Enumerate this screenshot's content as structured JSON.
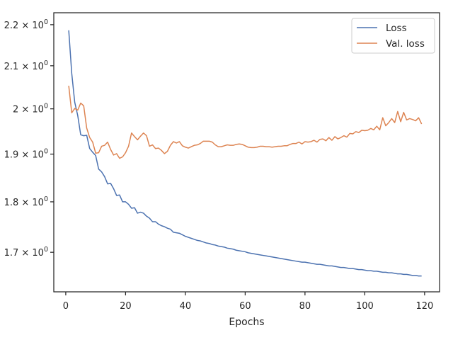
{
  "chart_data": {
    "type": "line",
    "xlabel": "Epochs",
    "ylabel": "",
    "xlim": [
      -4,
      125
    ],
    "ylim": [
      1.6255,
      2.23
    ],
    "yscale": "log",
    "grid": false,
    "legend_placement": "top-right",
    "x_ticks": [
      0,
      20,
      40,
      60,
      80,
      100,
      120
    ],
    "x_tick_labels": [
      "0",
      "20",
      "40",
      "60",
      "80",
      "100",
      "120"
    ],
    "y_ticks": [
      {
        "value": 1.7,
        "mant": "1.7",
        "exp": "0"
      },
      {
        "value": 1.8,
        "mant": "1.8",
        "exp": "0"
      },
      {
        "value": 1.9,
        "mant": "1.9",
        "exp": "0"
      },
      {
        "value": 2.0,
        "mant": "2",
        "exp": "0"
      },
      {
        "value": 2.1,
        "mant": "2.1",
        "exp": "0"
      },
      {
        "value": 2.2,
        "mant": "2.2",
        "exp": "0"
      }
    ],
    "y_tick_base": "10",
    "y_tick_times": "×",
    "series": [
      {
        "name": "Loss",
        "color": "#4c72b0",
        "x": [
          1,
          2,
          3,
          4,
          5,
          6,
          7,
          8,
          9,
          10,
          11,
          12,
          13,
          14,
          15,
          16,
          17,
          18,
          19,
          20,
          21,
          22,
          23,
          24,
          25,
          26,
          27,
          28,
          29,
          30,
          31,
          32,
          33,
          34,
          35,
          36,
          37,
          38,
          39,
          40,
          41,
          42,
          43,
          44,
          45,
          46,
          47,
          48,
          49,
          50,
          51,
          52,
          53,
          54,
          55,
          56,
          57,
          58,
          59,
          60,
          61,
          62,
          63,
          64,
          65,
          66,
          67,
          68,
          69,
          70,
          71,
          72,
          73,
          74,
          75,
          76,
          77,
          78,
          79,
          80,
          81,
          82,
          83,
          84,
          85,
          86,
          87,
          88,
          89,
          90,
          91,
          92,
          93,
          94,
          95,
          96,
          97,
          98,
          99,
          100,
          101,
          102,
          103,
          104,
          105,
          106,
          107,
          108,
          109,
          110,
          111,
          112,
          113,
          114,
          115,
          116,
          117,
          118,
          119
        ],
        "y": [
          2.186,
          2.082,
          2.015,
          1.985,
          1.942,
          1.94,
          1.941,
          1.912,
          1.904,
          1.897,
          1.868,
          1.862,
          1.852,
          1.837,
          1.838,
          1.827,
          1.813,
          1.814,
          1.8,
          1.8,
          1.795,
          1.787,
          1.788,
          1.777,
          1.779,
          1.777,
          1.771,
          1.767,
          1.76,
          1.76,
          1.755,
          1.752,
          1.75,
          1.747,
          1.745,
          1.739,
          1.738,
          1.737,
          1.734,
          1.731,
          1.729,
          1.727,
          1.725,
          1.723,
          1.722,
          1.72,
          1.718,
          1.717,
          1.715,
          1.714,
          1.712,
          1.711,
          1.71,
          1.708,
          1.707,
          1.706,
          1.704,
          1.703,
          1.702,
          1.701,
          1.699,
          1.698,
          1.697,
          1.696,
          1.695,
          1.694,
          1.693,
          1.692,
          1.691,
          1.69,
          1.689,
          1.688,
          1.687,
          1.686,
          1.685,
          1.684,
          1.683,
          1.682,
          1.681,
          1.681,
          1.68,
          1.679,
          1.678,
          1.677,
          1.677,
          1.676,
          1.675,
          1.674,
          1.674,
          1.673,
          1.672,
          1.671,
          1.671,
          1.67,
          1.669,
          1.669,
          1.668,
          1.667,
          1.667,
          1.666,
          1.665,
          1.665,
          1.664,
          1.664,
          1.663,
          1.662,
          1.662,
          1.661,
          1.661,
          1.66,
          1.659,
          1.659,
          1.658,
          1.658,
          1.657,
          1.656,
          1.656,
          1.655,
          1.655
        ]
      },
      {
        "name": "Val. loss",
        "color": "#dd8452",
        "x": [
          1,
          2,
          3,
          4,
          5,
          6,
          7,
          8,
          9,
          10,
          11,
          12,
          13,
          14,
          15,
          16,
          17,
          18,
          19,
          20,
          21,
          22,
          23,
          24,
          25,
          26,
          27,
          28,
          29,
          30,
          31,
          32,
          33,
          34,
          35,
          36,
          37,
          38,
          39,
          40,
          41,
          42,
          43,
          44,
          45,
          46,
          47,
          48,
          49,
          50,
          51,
          52,
          53,
          54,
          55,
          56,
          57,
          58,
          59,
          60,
          61,
          62,
          63,
          64,
          65,
          66,
          67,
          68,
          69,
          70,
          71,
          72,
          73,
          74,
          75,
          76,
          77,
          78,
          79,
          80,
          81,
          82,
          83,
          84,
          85,
          86,
          87,
          88,
          89,
          90,
          91,
          92,
          93,
          94,
          95,
          96,
          97,
          98,
          99,
          100,
          101,
          102,
          103,
          104,
          105,
          106,
          107,
          108,
          109,
          110,
          111,
          112,
          113,
          114,
          115,
          116,
          117,
          118,
          119
        ],
        "y": [
          2.053,
          1.991,
          2.001,
          1.997,
          2.013,
          2.007,
          1.957,
          1.936,
          1.926,
          1.902,
          1.903,
          1.917,
          1.919,
          1.926,
          1.91,
          1.898,
          1.901,
          1.891,
          1.894,
          1.903,
          1.917,
          1.946,
          1.938,
          1.931,
          1.939,
          1.946,
          1.94,
          1.917,
          1.92,
          1.912,
          1.913,
          1.908,
          1.901,
          1.906,
          1.919,
          1.927,
          1.924,
          1.927,
          1.918,
          1.915,
          1.913,
          1.916,
          1.919,
          1.92,
          1.923,
          1.928,
          1.928,
          1.928,
          1.926,
          1.92,
          1.916,
          1.916,
          1.918,
          1.92,
          1.919,
          1.919,
          1.921,
          1.922,
          1.921,
          1.918,
          1.915,
          1.914,
          1.914,
          1.915,
          1.917,
          1.917,
          1.916,
          1.916,
          1.915,
          1.916,
          1.917,
          1.917,
          1.918,
          1.918,
          1.921,
          1.923,
          1.923,
          1.926,
          1.922,
          1.927,
          1.926,
          1.927,
          1.93,
          1.926,
          1.932,
          1.933,
          1.929,
          1.936,
          1.93,
          1.938,
          1.933,
          1.936,
          1.94,
          1.937,
          1.945,
          1.944,
          1.949,
          1.947,
          1.952,
          1.951,
          1.952,
          1.956,
          1.953,
          1.961,
          1.953,
          1.98,
          1.962,
          1.969,
          1.978,
          1.969,
          1.994,
          1.971,
          1.992,
          1.975,
          1.978,
          1.976,
          1.973,
          1.98,
          1.966
        ]
      }
    ]
  }
}
